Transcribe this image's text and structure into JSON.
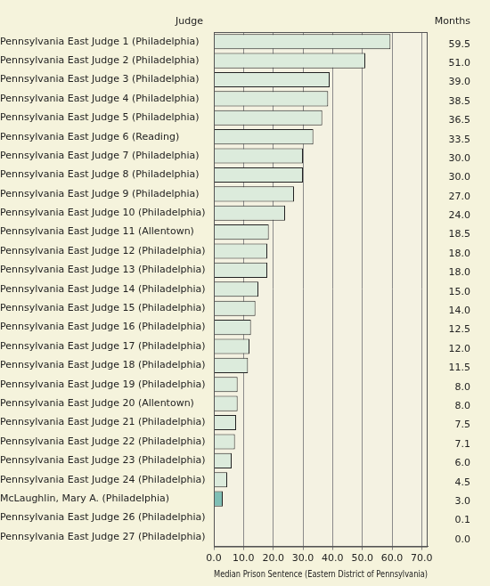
{
  "chart_data": {
    "type": "bar",
    "orientation": "horizontal",
    "ylabel": "Judge",
    "xlabel": "Median Prison Sentence (Eastern District of Pennsylvania)",
    "value_labels_header": "Months",
    "categories": [
      "Pennsylvania East Judge 1 (Philadelphia)",
      "Pennsylvania East Judge 2 (Philadelphia)",
      "Pennsylvania East Judge 3 (Philadelphia)",
      "Pennsylvania East Judge 4 (Philadelphia)",
      "Pennsylvania East Judge 5 (Philadelphia)",
      "Pennsylvania East Judge 6 (Reading)",
      "Pennsylvania East Judge 7 (Philadelphia)",
      "Pennsylvania East Judge 8 (Philadelphia)",
      "Pennsylvania East Judge 9 (Philadelphia)",
      "Pennsylvania East Judge 10 (Philadelphia)",
      "Pennsylvania East Judge 11 (Allentown)",
      "Pennsylvania East Judge 12 (Philadelphia)",
      "Pennsylvania East Judge 13 (Philadelphia)",
      "Pennsylvania East Judge 14 (Philadelphia)",
      "Pennsylvania East Judge 15 (Philadelphia)",
      "Pennsylvania East Judge 16 (Philadelphia)",
      "Pennsylvania East Judge 17 (Philadelphia)",
      "Pennsylvania East Judge 18 (Philadelphia)",
      "Pennsylvania East Judge 19 (Philadelphia)",
      "Pennsylvania East Judge 20 (Allentown)",
      "Pennsylvania East Judge 21 (Philadelphia)",
      "Pennsylvania East Judge 22 (Philadelphia)",
      "Pennsylvania East Judge 23 (Philadelphia)",
      "Pennsylvania East Judge 24 (Philadelphia)",
      "McLaughlin, Mary A. (Philadelphia)",
      "Pennsylvania East Judge 26 (Philadelphia)",
      "Pennsylvania East Judge 27 (Philadelphia)"
    ],
    "values": [
      59.5,
      51.0,
      39.0,
      38.5,
      36.5,
      33.5,
      30.0,
      30.0,
      27.0,
      24.0,
      18.5,
      18.0,
      18.0,
      15.0,
      14.0,
      12.5,
      12.0,
      11.5,
      8.0,
      8.0,
      7.5,
      7.1,
      6.0,
      4.5,
      3.0,
      0.1,
      0.0
    ],
    "value_labels": [
      "59.5",
      "51.0",
      "39.0",
      "38.5",
      "36.5",
      "33.5",
      "30.0",
      "30.0",
      "27.0",
      "24.0",
      "18.5",
      "18.0",
      "18.0",
      "15.0",
      "14.0",
      "12.5",
      "12.0",
      "11.5",
      "8.0",
      "8.0",
      "7.5",
      "7.1",
      "6.0",
      "4.5",
      "3.0",
      "0.1",
      "0.0"
    ],
    "data_labels": true,
    "colors": [
      "#dcebdc",
      "#dcebdc",
      "#dcebdc",
      "#dcebdc",
      "#dcebdc",
      "#dcebdc",
      "#dcebdc",
      "#dcebdc",
      "#dcebdc",
      "#dcebdc",
      "#dcebdc",
      "#dcebdc",
      "#dcebdc",
      "#dcebdc",
      "#dcebdc",
      "#dcebdc",
      "#dcebdc",
      "#dcebdc",
      "#dcebdc",
      "#dcebdc",
      "#dcebdc",
      "#dcebdc",
      "#dcebdc",
      "#dcebdc",
      "#7fbfb5",
      "#dcebdc",
      "#dcebdc"
    ],
    "xlim": [
      0,
      72
    ],
    "xticks": [
      {
        "value": 0,
        "label": "0.0"
      },
      {
        "value": 10,
        "label": "10.0"
      },
      {
        "value": 20,
        "label": "20.0"
      },
      {
        "value": 30,
        "label": "30.0"
      },
      {
        "value": 40,
        "label": "40.0"
      },
      {
        "value": 50,
        "label": "50.0"
      },
      {
        "value": 60,
        "label": "60.0"
      },
      {
        "value": 70,
        "label": "70.0"
      }
    ],
    "grid": true
  }
}
